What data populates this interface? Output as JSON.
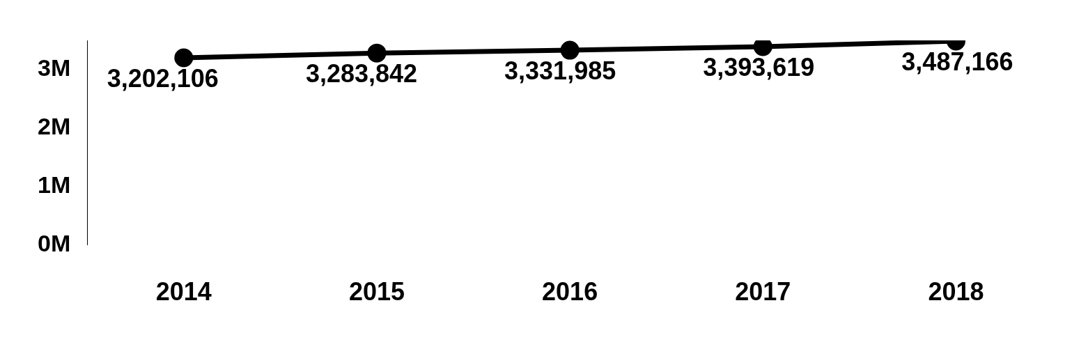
{
  "chart_data": {
    "type": "line",
    "categories": [
      "2014",
      "2015",
      "2016",
      "2017",
      "2018"
    ],
    "values": [
      3202106,
      3283842,
      3331985,
      3393619,
      3487166
    ],
    "value_labels": [
      "3,202,106",
      "3,283,842",
      "3,331,985",
      "3,393,619",
      "3,487,166"
    ],
    "color": "#000000",
    "ylim": [
      0,
      3500000
    ],
    "yticks": [
      {
        "value": 0,
        "label": "0M"
      },
      {
        "value": 1000000,
        "label": "1M"
      },
      {
        "value": 2000000,
        "label": "2M"
      },
      {
        "value": 3000000,
        "label": "3M"
      }
    ],
    "grid": false,
    "data_labels": true,
    "marker": "circle",
    "line_style": "solid"
  }
}
